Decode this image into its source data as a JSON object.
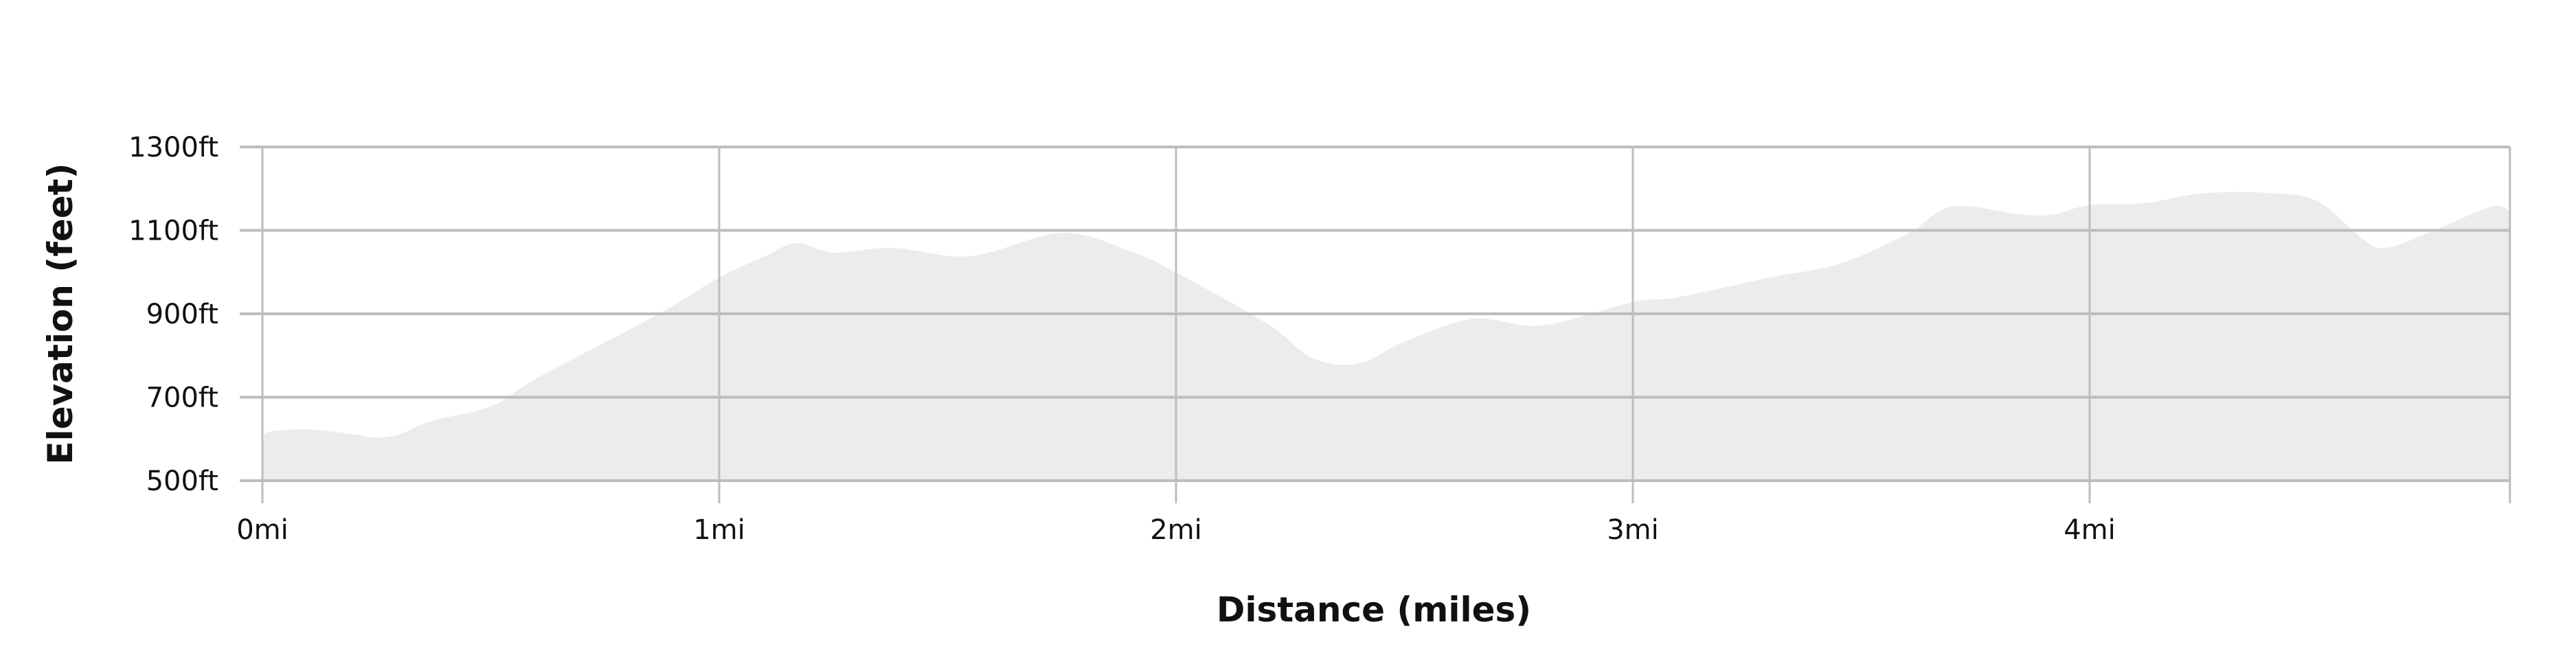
{
  "chart_data": {
    "type": "area",
    "title": "",
    "xlabel": "Distance (miles)",
    "ylabel": "Elevation (feet)",
    "xlim": [
      0,
      4.92
    ],
    "ylim": [
      500,
      1300
    ],
    "x_ticks": [
      0,
      1,
      2,
      3,
      4
    ],
    "x_tick_labels": [
      "0mi",
      "1mi",
      "2mi",
      "3mi",
      "4mi"
    ],
    "y_ticks": [
      500,
      700,
      900,
      1100,
      1300
    ],
    "y_tick_labels": [
      "500ft",
      "700ft",
      "900ft",
      "1100ft",
      "1300ft"
    ],
    "grid": true,
    "colors": {
      "fill": "#ececec",
      "grid": "#bdbdbd"
    },
    "series": [
      {
        "x": [
          0,
          0.02,
          0.1,
          0.2,
          0.25,
          0.3,
          0.37,
          0.5,
          0.6,
          0.8,
          0.9,
          1.0,
          1.1,
          1.17,
          1.25,
          1.38,
          1.55,
          1.75,
          1.9,
          2.0,
          2.2,
          2.3,
          2.4,
          2.5,
          2.65,
          2.8,
          3.0,
          3.1,
          3.3,
          3.45,
          3.6,
          3.7,
          3.85,
          3.92,
          4.0,
          4.12,
          4.25,
          4.4,
          4.5,
          4.6,
          4.65,
          4.75,
          4.88,
          4.92
        ],
        "y": [
          605,
          618,
          623,
          611,
          603,
          611,
          643,
          678,
          745,
          860,
          920,
          987,
          1038,
          1070,
          1047,
          1058,
          1038,
          1094,
          1050,
          999,
          876,
          793,
          781,
          833,
          888,
          872,
          928,
          940,
          987,
          1019,
          1091,
          1157,
          1138,
          1138,
          1161,
          1165,
          1189,
          1189,
          1169,
          1078,
          1058,
          1098,
          1157,
          1145
        ]
      }
    ]
  }
}
